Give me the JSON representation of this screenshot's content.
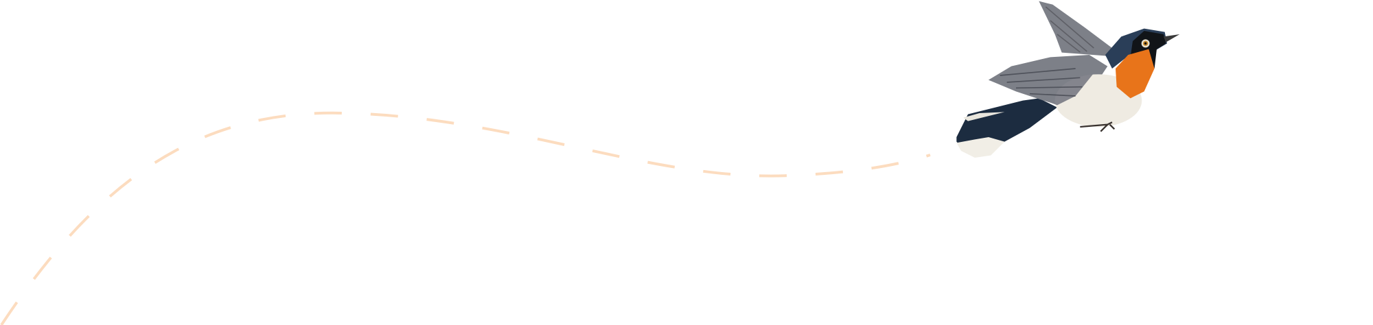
{
  "illustration": {
    "subject": "bird-illustration",
    "flight_path_style": "dashed",
    "colors": {
      "background": "#ffffff",
      "flight_path": "#fcdcbf",
      "bird_head": "#2a3e58",
      "bird_throat": "#e8741a",
      "bird_belly": "#efebe2",
      "bird_wing": "#7d8088",
      "bird_tail": "#1c2c40"
    }
  }
}
